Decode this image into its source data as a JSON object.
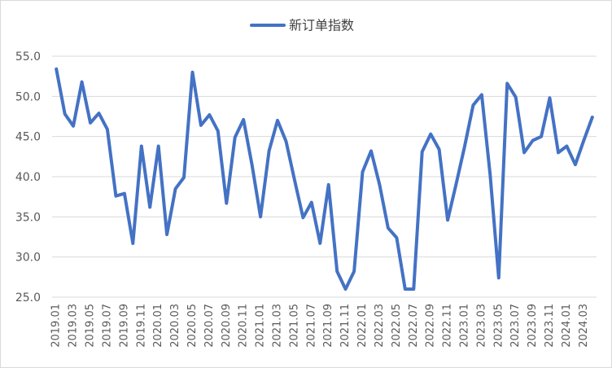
{
  "chart_data": {
    "type": "line",
    "title": "",
    "xlabel": "",
    "ylabel": "",
    "ylim": [
      25.0,
      55.0
    ],
    "yticks": [
      "25.0",
      "30.0",
      "35.0",
      "40.0",
      "45.0",
      "50.0",
      "55.0"
    ],
    "grid": true,
    "legend_position": "top",
    "line_color": "#4472C4",
    "x": [
      "2019.01",
      "2019.02",
      "2019.03",
      "2019.04",
      "2019.05",
      "2019.06",
      "2019.07",
      "2019.08",
      "2019.09",
      "2019.10",
      "2019.11",
      "2019.12",
      "2020.01",
      "2020.02",
      "2020.03",
      "2020.04",
      "2020.05",
      "2020.06",
      "2020.07",
      "2020.08",
      "2020.09",
      "2020.10",
      "2020.11",
      "2020.12",
      "2021.01",
      "2021.02",
      "2021.03",
      "2021.04",
      "2021.05",
      "2021.06",
      "2021.07",
      "2021.08",
      "2021.09",
      "2021.10",
      "2021.11",
      "2021.12",
      "2022.01",
      "2022.02",
      "2022.03",
      "2022.04",
      "2022.05",
      "2022.06",
      "2022.07",
      "2022.08",
      "2022.09",
      "2022.10",
      "2022.11",
      "2022.12",
      "2023.01",
      "2023.02",
      "2023.03",
      "2023.04",
      "2023.05",
      "2023.06",
      "2023.07",
      "2023.08",
      "2023.09",
      "2023.10",
      "2023.11",
      "2023.12",
      "2024.01",
      "2024.02",
      "2024.03",
      "2024.04"
    ],
    "xtick_labels": [
      "2019.01",
      "2019.03",
      "2019.05",
      "2019.07",
      "2019.09",
      "2019.11",
      "2020.01",
      "2020.03",
      "2020.05",
      "2020.07",
      "2020.09",
      "2020.11",
      "2021.01",
      "2021.03",
      "2021.05",
      "2021.07",
      "2021.09",
      "2021.11",
      "2022.01",
      "2022.03",
      "2022.05",
      "2022.07",
      "2022.09",
      "2022.11",
      "2023.01",
      "2023.03",
      "2023.05",
      "2023.07",
      "2023.09",
      "2023.11",
      "2024.01",
      "2024.03"
    ],
    "series": [
      {
        "name": "新订单指数",
        "values": [
          53.4,
          47.8,
          46.3,
          51.8,
          46.7,
          47.9,
          45.9,
          37.6,
          37.9,
          31.7,
          43.8,
          36.2,
          43.8,
          32.8,
          38.5,
          39.9,
          53.0,
          46.4,
          47.7,
          45.7,
          36.7,
          44.9,
          47.1,
          41.5,
          35.0,
          43.2,
          47.0,
          44.4,
          39.6,
          34.9,
          36.8,
          31.7,
          39.0,
          28.2,
          26.0,
          28.2,
          40.6,
          43.2,
          39.0,
          33.6,
          32.4,
          26.0,
          26.0,
          43.1,
          45.3,
          43.4,
          34.6,
          39.1,
          43.8,
          48.9,
          50.2,
          40.2,
          27.4,
          51.6,
          49.9,
          43.0,
          44.5,
          45.0,
          49.8,
          43.0,
          43.8,
          41.5,
          44.5,
          47.4
        ]
      }
    ]
  }
}
